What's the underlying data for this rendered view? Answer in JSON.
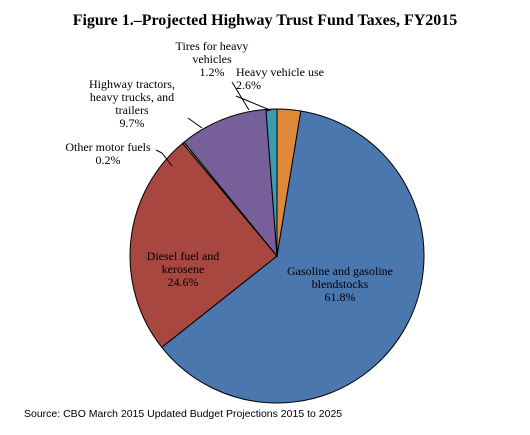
{
  "chart_data": {
    "type": "pie",
    "title": "Figure 1.–Projected Highway Trust Fund Taxes, FY2015",
    "slices": [
      {
        "label_lines": [
          "Heavy vehicle use"
        ],
        "value_text": "2.6%",
        "value": 2.6,
        "color": "#E0883A"
      },
      {
        "label_lines": [
          "Gasoline and gasoline",
          "blendstocks"
        ],
        "value_text": "61.8%",
        "value": 61.8,
        "color": "#4A77AE"
      },
      {
        "label_lines": [
          "Diesel fuel and",
          "kerosene"
        ],
        "value_text": "24.6%",
        "value": 24.6,
        "color": "#A84640"
      },
      {
        "label_lines": [
          "Other motor fuels"
        ],
        "value_text": "0.2%",
        "value": 0.2,
        "color": "#7F9C45"
      },
      {
        "label_lines": [
          "Highway tractors,",
          "heavy trucks, and",
          "trailers"
        ],
        "value_text": "9.7%",
        "value": 9.7,
        "color": "#77609A"
      },
      {
        "label_lines": [
          "Tires for heavy",
          "vehicles"
        ],
        "value_text": "1.2%",
        "value": 1.2,
        "color": "#3C9AB3"
      }
    ],
    "source": "Source: CBO March 2015 Updated Budget Projections 2015 to 2025"
  }
}
